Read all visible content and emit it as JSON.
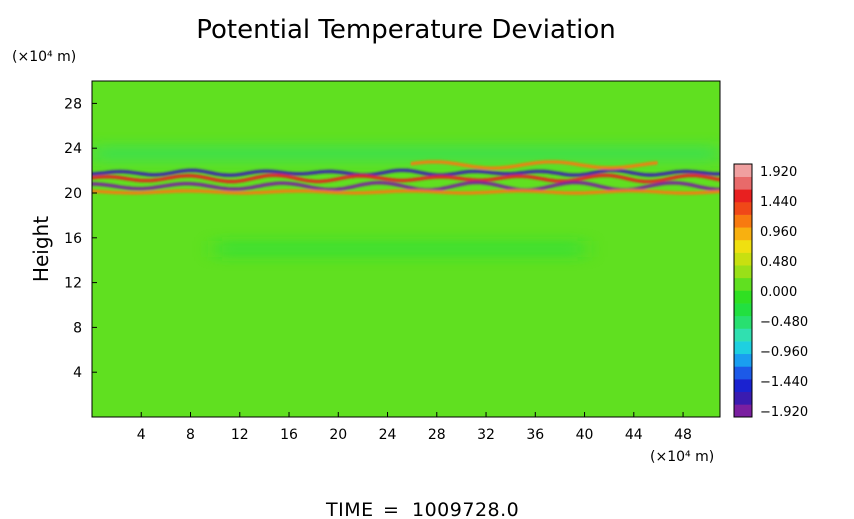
{
  "chart_data": {
    "type": "heatmap",
    "title": "Potential Temperature Deviation",
    "ylabel": "Height",
    "x_unit": "(×10⁴ m)",
    "y_unit": "(×10⁴ m)",
    "xlim": [
      0,
      51
    ],
    "ylim": [
      0,
      30
    ],
    "x_ticks": [
      4,
      8,
      12,
      16,
      20,
      24,
      28,
      32,
      36,
      40,
      44,
      48
    ],
    "y_ticks": [
      4,
      8,
      12,
      16,
      20,
      24,
      28
    ],
    "colorbar": {
      "labels": [
        "1.920",
        "1.440",
        "0.960",
        "0.480",
        "0.000",
        "−0.480",
        "−0.960",
        "−1.440",
        "−1.920"
      ],
      "vmin": -1.92,
      "vmax": 1.92,
      "colors": [
        "#7a1fa0",
        "#3a1bb0",
        "#1a22d0",
        "#1c5ae8",
        "#1a9ef0",
        "#1ed0e0",
        "#30e0b0",
        "#28e070",
        "#22e040",
        "#30e022",
        "#60e020",
        "#9ae018",
        "#c8e010",
        "#f0e010",
        "#f8b010",
        "#f87a10",
        "#f04818",
        "#e82020",
        "#e86a6a",
        "#f0a0a0"
      ]
    },
    "background_value": 0.0,
    "bands": [
      {
        "y": 21.8,
        "x_range": [
          0,
          51
        ],
        "value": -1.6
      },
      {
        "y": 21.3,
        "x_range": [
          0,
          51
        ],
        "value": 1.4
      },
      {
        "y": 20.6,
        "x_range": [
          0,
          51
        ],
        "value": -1.8
      },
      {
        "y": 20.1,
        "x_range": [
          0,
          51
        ],
        "value": 1.1
      },
      {
        "y": 22.5,
        "x_range": [
          26,
          46
        ],
        "value": 1.0
      },
      {
        "y": 23.5,
        "x_range": [
          0,
          51
        ],
        "value": -0.4
      },
      {
        "y": 15.0,
        "x_range": [
          10,
          40
        ],
        "value": -0.3
      }
    ],
    "time_label": "TIME",
    "time_value": "1009728.0"
  }
}
